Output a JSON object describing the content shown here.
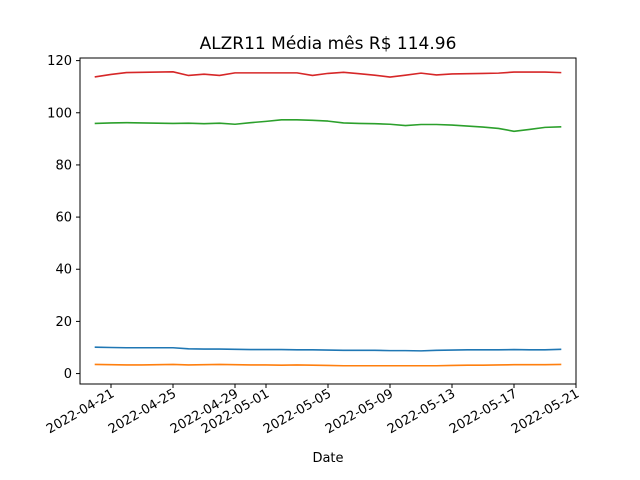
{
  "chart_data": {
    "type": "line",
    "title": "ALZR11 Média mês R$ 114.96",
    "xlabel": "Date",
    "ylabel": "",
    "ylim": [
      -4,
      121
    ],
    "xlim": [
      "2022-04-19",
      "2022-05-21"
    ],
    "grid": false,
    "y_ticks": [
      0,
      20,
      40,
      60,
      80,
      100,
      120
    ],
    "x_tick_labels": [
      "2022-04-21",
      "2022-04-25",
      "2022-04-29",
      "2022-05-01",
      "2022-05-05",
      "2022-05-09",
      "2022-05-13",
      "2022-05-17",
      "2022-05-21"
    ],
    "x_tick_dates": [
      "2022-04-21",
      "2022-04-25",
      "2022-04-29",
      "2022-05-01",
      "2022-05-05",
      "2022-05-09",
      "2022-05-13",
      "2022-05-17",
      "2022-05-21"
    ],
    "x": [
      "2022-04-20",
      "2022-04-21",
      "2022-04-22",
      "2022-04-23",
      "2022-04-24",
      "2022-04-25",
      "2022-04-26",
      "2022-04-27",
      "2022-04-28",
      "2022-04-29",
      "2022-04-30",
      "2022-05-01",
      "2022-05-02",
      "2022-05-03",
      "2022-05-04",
      "2022-05-05",
      "2022-05-06",
      "2022-05-07",
      "2022-05-08",
      "2022-05-09",
      "2022-05-10",
      "2022-05-11",
      "2022-05-12",
      "2022-05-13",
      "2022-05-14",
      "2022-05-15",
      "2022-05-16",
      "2022-05-17",
      "2022-05-18",
      "2022-05-19",
      "2022-05-20"
    ],
    "series": [
      {
        "color": "#1f77b4",
        "values": [
          10.1,
          10.0,
          9.9,
          9.9,
          9.9,
          9.9,
          9.5,
          9.4,
          9.4,
          9.3,
          9.2,
          9.2,
          9.2,
          9.1,
          9.1,
          9.0,
          8.9,
          8.9,
          8.9,
          8.8,
          8.8,
          8.7,
          8.9,
          9.0,
          9.1,
          9.1,
          9.1,
          9.2,
          9.1,
          9.1,
          9.3
        ]
      },
      {
        "color": "#ff7f0e",
        "values": [
          3.5,
          3.4,
          3.3,
          3.3,
          3.4,
          3.5,
          3.3,
          3.4,
          3.5,
          3.4,
          3.3,
          3.3,
          3.2,
          3.3,
          3.2,
          3.1,
          3.0,
          3.0,
          3.0,
          3.0,
          3.0,
          3.0,
          3.0,
          3.1,
          3.2,
          3.2,
          3.3,
          3.4,
          3.4,
          3.4,
          3.5
        ]
      },
      {
        "color": "#2ca02c",
        "values": [
          95.9,
          96.1,
          96.2,
          96.1,
          96.0,
          95.9,
          96.0,
          95.8,
          96.0,
          95.6,
          96.2,
          96.7,
          97.3,
          97.3,
          97.1,
          96.8,
          96.1,
          95.9,
          95.8,
          95.6,
          95.1,
          95.5,
          95.5,
          95.3,
          94.9,
          94.5,
          94.0,
          92.9,
          93.6,
          94.4,
          94.6
        ]
      },
      {
        "color": "#d62728",
        "values": [
          113.8,
          114.7,
          115.4,
          115.5,
          115.6,
          115.7,
          114.3,
          114.8,
          114.3,
          115.3,
          115.3,
          115.3,
          115.3,
          115.3,
          114.3,
          115.1,
          115.5,
          115.0,
          114.4,
          113.7,
          114.4,
          115.2,
          114.5,
          114.9,
          115.0,
          115.1,
          115.2,
          115.6,
          115.6,
          115.6,
          115.4
        ]
      }
    ]
  }
}
